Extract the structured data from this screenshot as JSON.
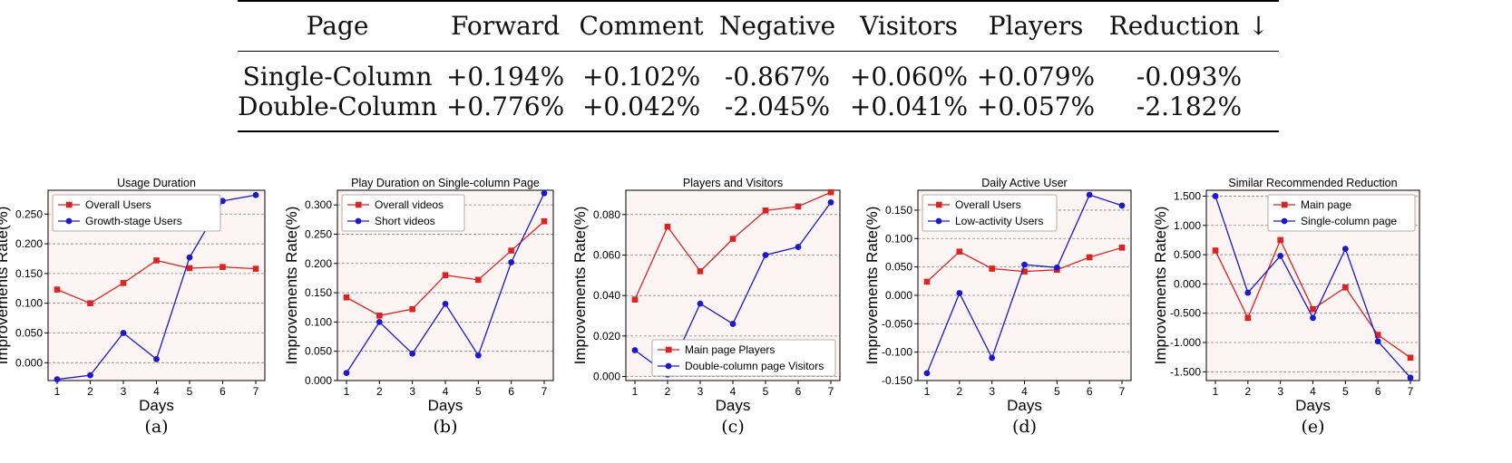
{
  "table": {
    "headers": [
      "Page",
      "Forward",
      "Comment",
      "Negative",
      "Visitors",
      "Players",
      "Reduction ↓"
    ],
    "rows": [
      [
        "Single-Column",
        "+0.194%",
        "+0.102%",
        "-0.867%",
        "+0.060%",
        "+0.079%",
        "-0.093%"
      ],
      [
        "Double-Column",
        "+0.776%",
        "+0.042%",
        "-2.045%",
        "+0.041%",
        "+0.057%",
        "-2.182%"
      ]
    ]
  },
  "chart_data": [
    {
      "type": "line",
      "panel_label": "(a)",
      "title": "Usage Duration",
      "xlabel": "Days",
      "ylabel": "Improvements Rate(%)",
      "x": [
        1,
        2,
        3,
        4,
        5,
        6,
        7
      ],
      "ylim": [
        -0.03,
        0.29
      ],
      "yticks": [
        0.0,
        0.05,
        0.1,
        0.15,
        0.2,
        0.25
      ],
      "ytick_labels": [
        "0.000",
        "0.050",
        "0.100",
        "0.150",
        "0.200",
        "0.250"
      ],
      "legend_position": "top-left",
      "series": [
        {
          "name": "Overall Users",
          "color": "#dd2222",
          "marker": "square",
          "values": [
            0.123,
            0.1,
            0.134,
            0.172,
            0.159,
            0.161,
            0.158
          ]
        },
        {
          "name": "Growth-stage Users",
          "color": "#1a1acc",
          "marker": "circle",
          "values": [
            -0.028,
            -0.021,
            0.05,
            0.006,
            0.177,
            0.272,
            0.282
          ]
        }
      ]
    },
    {
      "type": "line",
      "panel_label": "(b)",
      "title": "Play Duration on Single-column Page",
      "xlabel": "Days",
      "ylabel": "Improvements Rate(%)",
      "x": [
        1,
        2,
        3,
        4,
        5,
        6,
        7
      ],
      "ylim": [
        0.0,
        0.325
      ],
      "yticks": [
        0.0,
        0.05,
        0.1,
        0.15,
        0.2,
        0.25,
        0.3
      ],
      "ytick_labels": [
        "0.000",
        "0.050",
        "0.100",
        "0.150",
        "0.200",
        "0.250",
        "0.300"
      ],
      "legend_position": "top-left",
      "series": [
        {
          "name": "Overall videos",
          "color": "#dd2222",
          "marker": "square",
          "values": [
            0.142,
            0.111,
            0.122,
            0.18,
            0.172,
            0.222,
            0.272
          ]
        },
        {
          "name": "Short videos",
          "color": "#1a1acc",
          "marker": "circle",
          "values": [
            0.013,
            0.1,
            0.046,
            0.131,
            0.043,
            0.202,
            0.32
          ]
        }
      ]
    },
    {
      "type": "line",
      "panel_label": "(c)",
      "title": "Players and Visitors",
      "xlabel": "Days",
      "ylabel": "Improvements Rate(%)",
      "x": [
        1,
        2,
        3,
        4,
        5,
        6,
        7
      ],
      "ylim": [
        -0.002,
        0.092
      ],
      "yticks": [
        0.0,
        0.02,
        0.04,
        0.06,
        0.08
      ],
      "ytick_labels": [
        "0.000",
        "0.020",
        "0.040",
        "0.060",
        "0.080"
      ],
      "legend_position": "bottom-right",
      "series": [
        {
          "name": "Main page Players",
          "color": "#dd2222",
          "marker": "square",
          "values": [
            0.038,
            0.074,
            0.052,
            0.068,
            0.082,
            0.084,
            0.091
          ]
        },
        {
          "name": "Double-column page Visitors",
          "color": "#1a1acc",
          "marker": "circle",
          "values": [
            0.013,
            0.001,
            0.036,
            0.026,
            0.06,
            0.064,
            0.086
          ]
        }
      ]
    },
    {
      "type": "line",
      "panel_label": "(d)",
      "title": "Daily Active User",
      "xlabel": "Days",
      "ylabel": "Improvements Rate(%)",
      "x": [
        1,
        2,
        3,
        4,
        5,
        6,
        7
      ],
      "ylim": [
        -0.15,
        0.185
      ],
      "yticks": [
        -0.15,
        -0.1,
        -0.05,
        0.0,
        0.05,
        0.1,
        0.15
      ],
      "ytick_labels": [
        "-0.150",
        "-0.100",
        "-0.050",
        "0.000",
        "0.050",
        "0.100",
        "0.150"
      ],
      "legend_position": "top-left",
      "series": [
        {
          "name": "Overall Users",
          "color": "#dd2222",
          "marker": "square",
          "values": [
            0.024,
            0.077,
            0.047,
            0.042,
            0.045,
            0.067,
            0.084
          ]
        },
        {
          "name": "Low-activity Users",
          "color": "#1a1acc",
          "marker": "circle",
          "values": [
            -0.137,
            0.004,
            -0.11,
            0.054,
            0.049,
            0.177,
            0.158
          ]
        }
      ]
    },
    {
      "type": "line",
      "panel_label": "(e)",
      "title": "Similar Recommended Reduction",
      "xlabel": "Days",
      "ylabel": "Improvements Rate(%)",
      "x": [
        1,
        2,
        3,
        4,
        5,
        6,
        7
      ],
      "ylim": [
        -1.65,
        1.6
      ],
      "yticks": [
        -1.5,
        -1.0,
        -0.5,
        0.0,
        0.5,
        1.0,
        1.5
      ],
      "ytick_labels": [
        "-1.500",
        "-1.000",
        "-0.500",
        "0.000",
        "0.500",
        "1.000",
        "1.500"
      ],
      "legend_position": "top-right",
      "series": [
        {
          "name": "Main page",
          "color": "#dd2222",
          "marker": "square",
          "values": [
            0.57,
            -0.58,
            0.75,
            -0.43,
            -0.06,
            -0.87,
            -1.26
          ]
        },
        {
          "name": "Single-column page",
          "color": "#1a1acc",
          "marker": "circle",
          "values": [
            1.5,
            -0.15,
            0.48,
            -0.58,
            0.6,
            -0.98,
            -1.6
          ]
        }
      ]
    }
  ]
}
